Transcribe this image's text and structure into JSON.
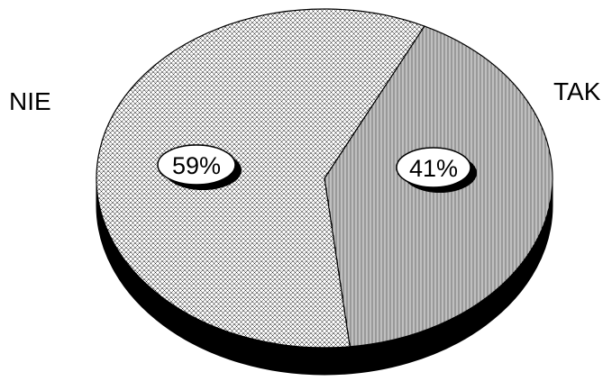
{
  "chart_data": {
    "type": "pie",
    "style": "3d",
    "categories": [
      "TAK",
      "NIE"
    ],
    "values": [
      41,
      59
    ],
    "data_labels": [
      "41%",
      "59%"
    ],
    "fill_patterns": [
      "vertical-hatch",
      "crosshatch"
    ],
    "legend": "none"
  }
}
